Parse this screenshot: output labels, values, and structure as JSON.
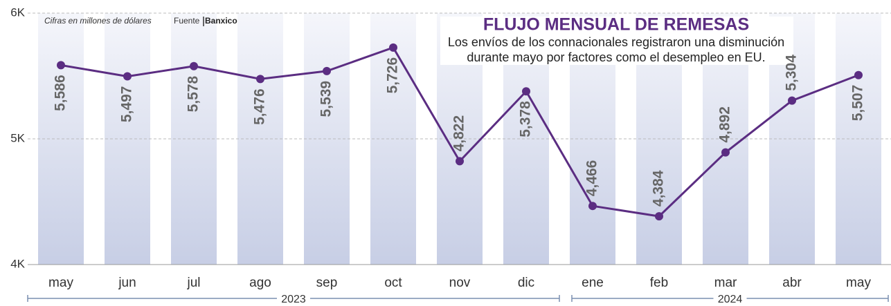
{
  "chart_data": {
    "type": "line",
    "title": "FLUJO MENSUAL DE REMESAS",
    "subtitle": [
      "Los envíos de los connacionales registraron una disminución",
      "durante mayo por factores como el desempleo en EU."
    ],
    "note": "Cifras en millones de dólares",
    "source_label": "Fuente",
    "source": "Banxico",
    "categories": [
      "may",
      "jun",
      "jul",
      "ago",
      "sep",
      "oct",
      "nov",
      "dic",
      "ene",
      "feb",
      "mar",
      "abr",
      "may"
    ],
    "groups": [
      {
        "label": "2023",
        "count": 8
      },
      {
        "label": "2024",
        "count": 5
      }
    ],
    "series": [
      {
        "name": "Remesas",
        "color": "#5b2d82",
        "values": [
          5586,
          5497,
          5578,
          5476,
          5539,
          5726,
          4822,
          5378,
          4466,
          4384,
          4892,
          5304,
          5507
        ],
        "value_labels": [
          "5,586",
          "5,497",
          "5,578",
          "5,476",
          "5,539",
          "5,726",
          "4,822",
          "5,378",
          "4,466",
          "4,384",
          "4,892",
          "5,304",
          "5,507"
        ],
        "label_positions": [
          "below",
          "below",
          "below",
          "below",
          "below",
          "below",
          "above",
          "below",
          "above",
          "above",
          "above",
          "above",
          "below"
        ]
      }
    ],
    "ylim": [
      4000,
      6000
    ],
    "yticks": [
      {
        "value": 4000,
        "label": "4K"
      },
      {
        "value": 5000,
        "label": "5K"
      },
      {
        "value": 6000,
        "label": "6K"
      }
    ],
    "grid": true
  }
}
